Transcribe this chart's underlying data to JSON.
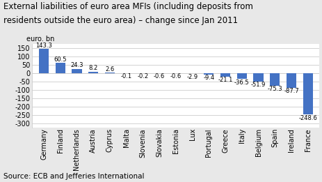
{
  "title_line1": "External liabilities of euro area MFIs (including deposits from",
  "title_line2": "residents outside the euro area) – change since Jan 2011",
  "ylabel": "euro. bn",
  "source": "Source: ECB and Jefferies International",
  "categories": [
    "Germany",
    "Finland",
    "Netherlands",
    "Austria",
    "Cyprus",
    "Malta",
    "Slovenia",
    "Slovakia",
    "Estonia",
    "Lux",
    "Portugal",
    "Greece",
    "Italy",
    "Belgium",
    "Spain",
    "Ireland",
    "France"
  ],
  "values": [
    143.3,
    60.5,
    24.3,
    8.2,
    2.6,
    -0.1,
    -0.2,
    -0.6,
    -0.6,
    -2.9,
    -9.4,
    -21.1,
    -36.5,
    -51.9,
    -75.3,
    -87.7,
    -248.6
  ],
  "bar_color": "#4472C4",
  "fig_background_color": "#E8E8E8",
  "plot_background_color": "#FFFFFF",
  "grid_color": "#CCCCCC",
  "ylim": [
    -325,
    175
  ],
  "yticks": [
    -300,
    -250,
    -200,
    -150,
    -100,
    -50,
    0,
    50,
    100,
    150
  ],
  "title_fontsize": 8.5,
  "label_fontsize": 6.0,
  "tick_fontsize": 7.0,
  "source_fontsize": 7.5,
  "ylabel_fontsize": 7.0
}
